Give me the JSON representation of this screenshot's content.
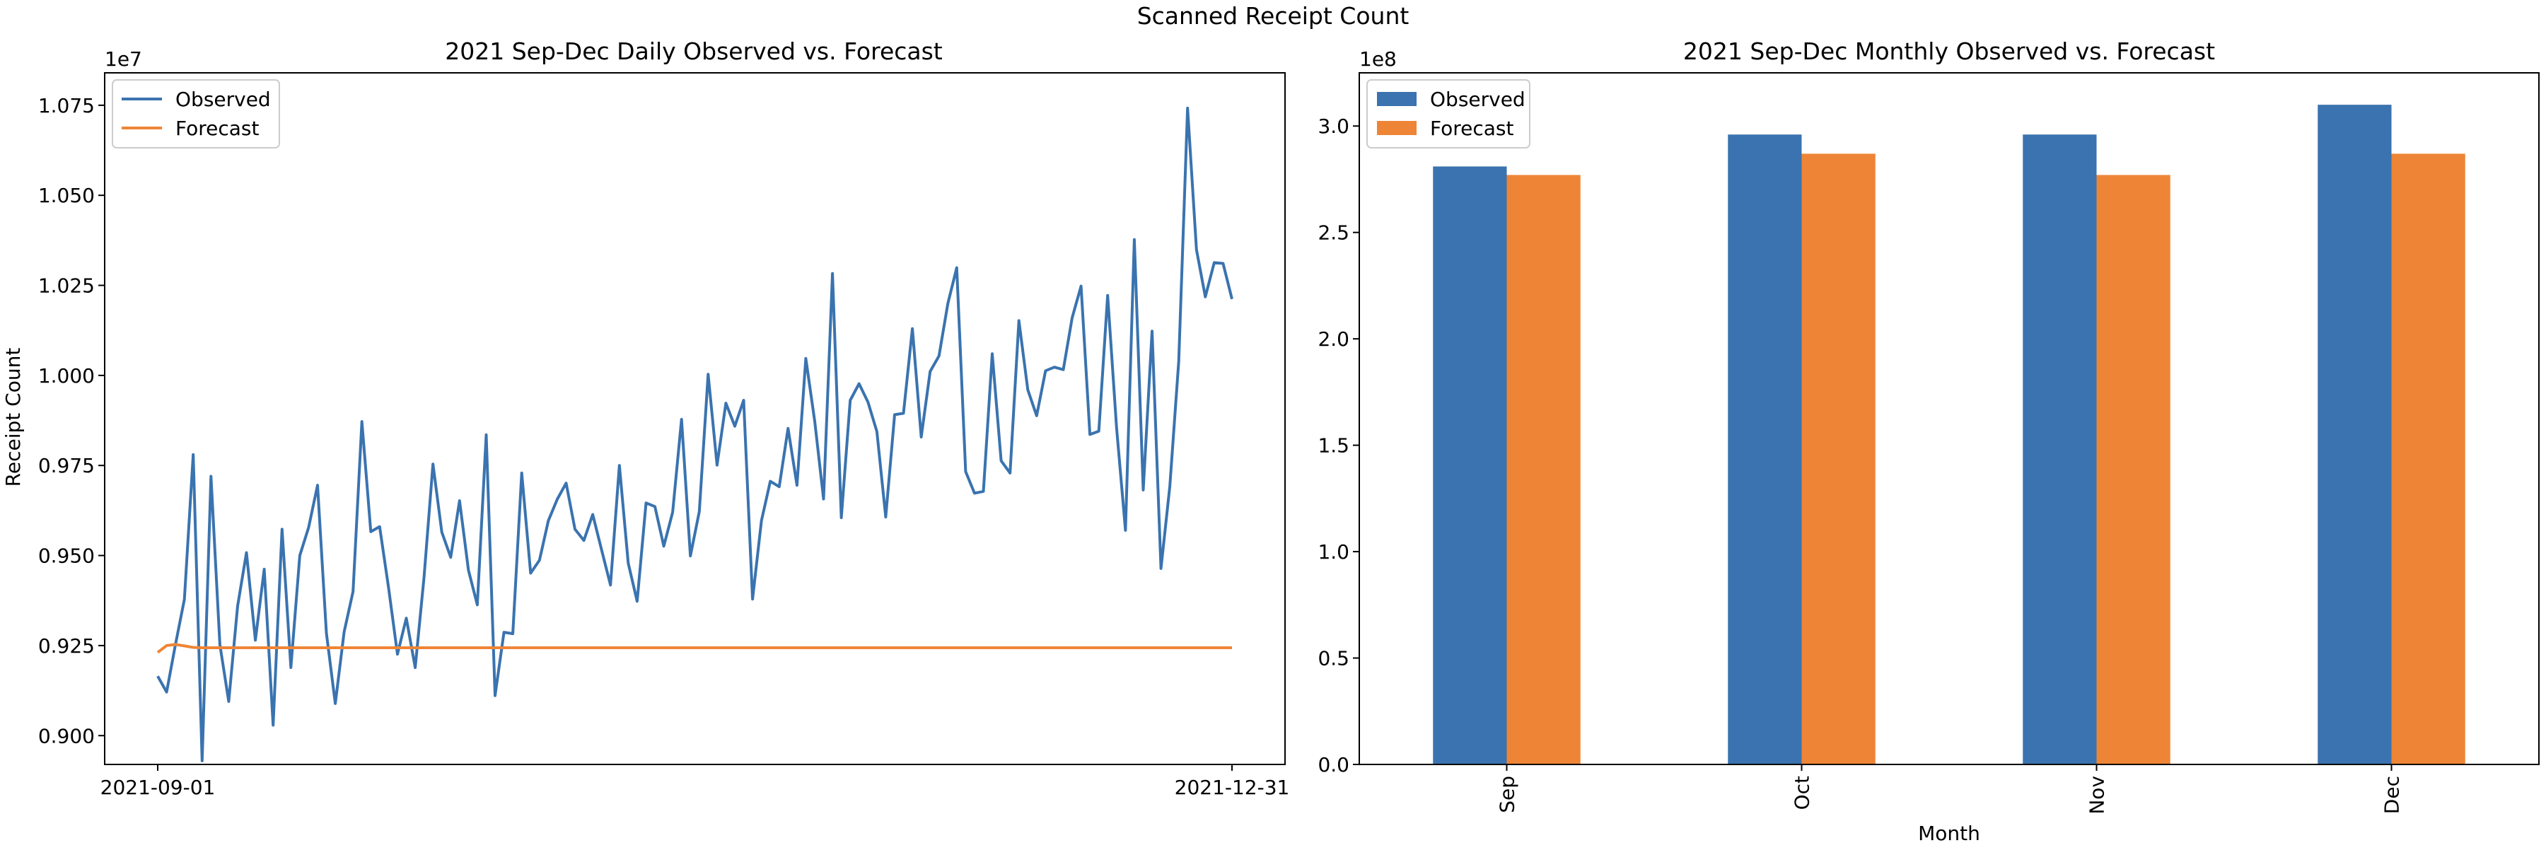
{
  "figure": {
    "suptitle": "Scanned Receipt Count"
  },
  "colors": {
    "observed": "#3A73AF",
    "forecast": "#EE8536",
    "axes": "#000000",
    "background": "#ffffff"
  },
  "chart_data": [
    {
      "type": "line",
      "title": "2021 Sep-Dec Daily Observed vs. Forecast",
      "xlabel": "",
      "ylabel": "Receipt Count",
      "y_offset_label": "1e7",
      "x_tick_labels": [
        "2021-09-01",
        "2021-12-31"
      ],
      "y_tick_labels": [
        "0.900",
        "0.925",
        "0.950",
        "0.975",
        "1.000",
        "1.025",
        "1.050",
        "1.075"
      ],
      "ylim": [
        8920000,
        10840000
      ],
      "grid": false,
      "legend": {
        "position": "upper left",
        "entries": [
          "Observed",
          "Forecast"
        ]
      },
      "series": [
        {
          "name": "Observed",
          "color": "#3A73AF",
          "values": [
            9165000,
            9121000,
            9253000,
            9378000,
            9780000,
            8930000,
            9720000,
            9253000,
            9095000,
            9360000,
            9508000,
            9265000,
            9462000,
            9029000,
            9573000,
            9189000,
            9500000,
            9578000,
            9695000,
            9285000,
            9089000,
            9288000,
            9400000,
            9872000,
            9566000,
            9580000,
            9411000,
            9226000,
            9326000,
            9189000,
            9440000,
            9754000,
            9565000,
            9495000,
            9652000,
            9459000,
            9363000,
            9835000,
            9111000,
            9287000,
            9283000,
            9729000,
            9451000,
            9487000,
            9597000,
            9656000,
            9701000,
            9573000,
            9542000,
            9614000,
            9515000,
            9418000,
            9750000,
            9479000,
            9373000,
            9646000,
            9636000,
            9526000,
            9620000,
            9878000,
            9499000,
            9622000,
            10003000,
            9751000,
            9923000,
            9859000,
            9931000,
            9379000,
            9597000,
            9706000,
            9691000,
            9853000,
            9695000,
            10047000,
            9873000,
            9657000,
            10283000,
            9605000,
            9931000,
            9977000,
            9926000,
            9844000,
            9607000,
            9891000,
            9895000,
            10130000,
            9829000,
            10011000,
            10054000,
            10200000,
            10299000,
            9733000,
            9673000,
            9678000,
            10060000,
            9763000,
            9729000,
            10152000,
            9960000,
            9888000,
            10013000,
            10023000,
            10016000,
            10160000,
            10248000,
            9836000,
            9845000,
            10222000,
            9855000,
            9570000,
            10377000,
            9682000,
            10123000,
            9464000,
            9692000,
            10039000,
            10742000,
            10349000,
            10218000,
            10313000,
            10311000,
            10212000
          ]
        },
        {
          "name": "Forecast",
          "color": "#EE8536",
          "values": [
            9231000,
            9250000,
            9253000,
            9249000,
            9245000,
            9244000,
            9244000,
            9244000,
            9244000,
            9244000,
            9244000,
            9244000,
            9244000,
            9244000,
            9244000,
            9244000,
            9244000,
            9244000,
            9244000,
            9244000,
            9244000,
            9244000,
            9244000,
            9244000,
            9244000,
            9244000,
            9244000,
            9244000,
            9244000,
            9244000,
            9244000,
            9244000,
            9244000,
            9244000,
            9244000,
            9244000,
            9244000,
            9244000,
            9244000,
            9244000,
            9244000,
            9244000,
            9244000,
            9244000,
            9244000,
            9244000,
            9244000,
            9244000,
            9244000,
            9244000,
            9244000,
            9244000,
            9244000,
            9244000,
            9244000,
            9244000,
            9244000,
            9244000,
            9244000,
            9244000,
            9244000,
            9244000,
            9244000,
            9244000,
            9244000,
            9244000,
            9244000,
            9244000,
            9244000,
            9244000,
            9244000,
            9244000,
            9244000,
            9244000,
            9244000,
            9244000,
            9244000,
            9244000,
            9244000,
            9244000,
            9244000,
            9244000,
            9244000,
            9244000,
            9244000,
            9244000,
            9244000,
            9244000,
            9244000,
            9244000,
            9244000,
            9244000,
            9244000,
            9244000,
            9244000,
            9244000,
            9244000,
            9244000,
            9244000,
            9244000,
            9244000,
            9244000,
            9244000,
            9244000,
            9244000,
            9244000,
            9244000,
            9244000,
            9244000,
            9244000,
            9244000,
            9244000,
            9244000,
            9244000,
            9244000,
            9244000,
            9244000,
            9244000,
            9244000,
            9244000,
            9244000,
            9244000
          ]
        }
      ]
    },
    {
      "type": "bar",
      "title": "2021 Sep-Dec Monthly Observed vs. Forecast",
      "xlabel": "Month",
      "ylabel": "",
      "y_offset_label": "1e8",
      "categories": [
        "Sep",
        "Oct",
        "Nov",
        "Dec"
      ],
      "y_tick_labels": [
        "0.0",
        "0.5",
        "1.0",
        "1.5",
        "2.0",
        "2.5",
        "3.0"
      ],
      "ylim": [
        0,
        325000000
      ],
      "grid": false,
      "legend": {
        "position": "upper left",
        "entries": [
          "Observed",
          "Forecast"
        ]
      },
      "series": [
        {
          "name": "Observed",
          "color": "#3A73AF",
          "values": [
            281000000,
            296000000,
            296000000,
            310000000
          ]
        },
        {
          "name": "Forecast",
          "color": "#EE8536",
          "values": [
            277000000,
            287000000,
            277000000,
            287000000
          ]
        }
      ]
    }
  ]
}
